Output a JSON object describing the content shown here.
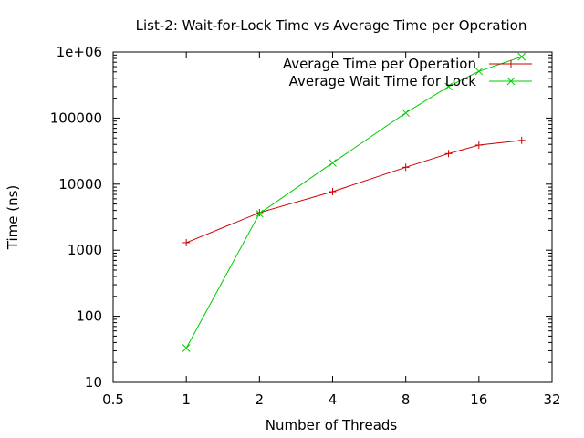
{
  "chart_data": {
    "type": "line",
    "title": "List-2: Wait-for-Lock Time vs Average Time per Operation",
    "xlabel": "Number of Threads",
    "ylabel": "Time (ns)",
    "x_scale": "log2",
    "y_scale": "log10",
    "xlim": [
      0.5,
      32
    ],
    "ylim": [
      10,
      1000000
    ],
    "x_ticks": [
      0.5,
      1,
      2,
      4,
      8,
      16,
      32
    ],
    "x_tick_labels": [
      "0.5",
      "1",
      "2",
      "4",
      "8",
      "16",
      "32"
    ],
    "y_ticks": [
      10,
      100,
      1000,
      10000,
      100000,
      1000000
    ],
    "y_tick_labels": [
      "10",
      "100",
      "1000",
      "10000",
      "100000",
      "1e+06"
    ],
    "grid": false,
    "legend_position": "top-right",
    "series": [
      {
        "name": "Average Time per Operation",
        "color": "#cc0000",
        "marker": "plus",
        "x": [
          1,
          2,
          4,
          8,
          12,
          16,
          24
        ],
        "y": [
          1300,
          3700,
          7700,
          18000,
          29000,
          39000,
          46000
        ]
      },
      {
        "name": "Average Wait Time for Lock",
        "color": "#00cc00",
        "marker": "cross",
        "x": [
          1,
          2,
          4,
          8,
          12,
          16,
          24
        ],
        "y": [
          33,
          3600,
          21000,
          120000,
          300000,
          510000,
          850000
        ]
      }
    ]
  }
}
